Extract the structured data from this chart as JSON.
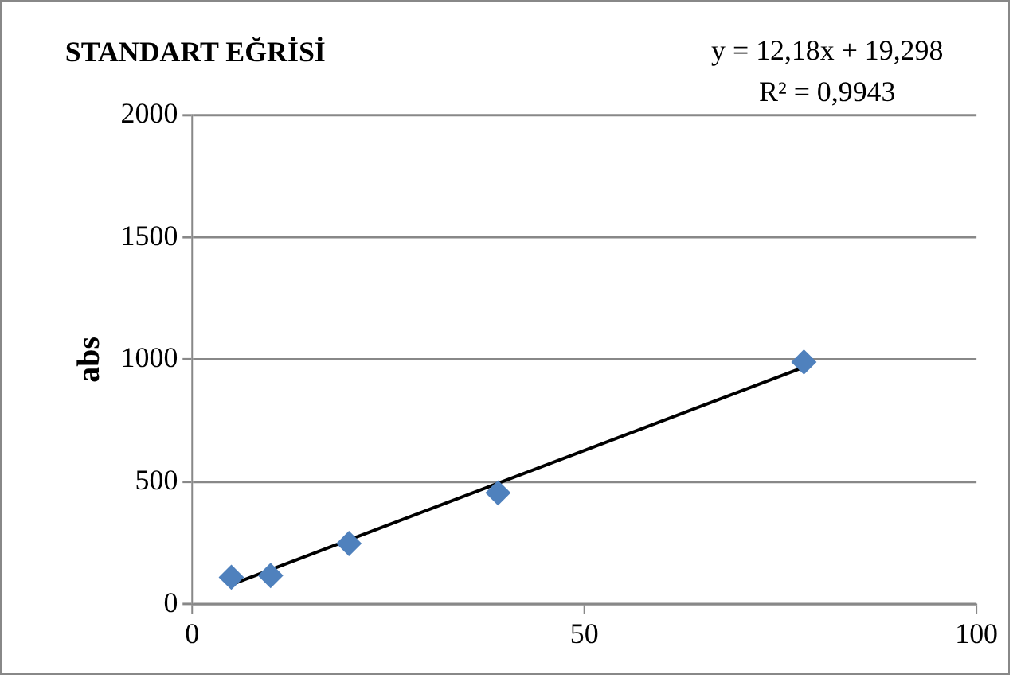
{
  "chart_data": {
    "type": "scatter",
    "title": "STANDART EĞRİSİ",
    "ylabel": "abs",
    "annotations": [
      "y = 12,18x + 19,298",
      "R² = 0,9943"
    ],
    "series": [
      {
        "type": "scatter",
        "color": "#4f81bd",
        "x": [
          5,
          10,
          20,
          39,
          78
        ],
        "values": [
          110,
          117,
          248,
          455,
          990
        ],
        "marker": "diamond"
      },
      {
        "type": "line",
        "color": "#000000",
        "x": [
          5,
          78
        ],
        "values": [
          80,
          969
        ],
        "marker": "none",
        "line_style": "solid"
      }
    ],
    "xlim": [
      0,
      100
    ],
    "xticks": [
      0,
      50,
      100
    ],
    "ylim": [
      0,
      2000
    ],
    "yticks": [
      0,
      500,
      1000,
      1500,
      2000
    ],
    "grid": "y",
    "legend": false
  }
}
